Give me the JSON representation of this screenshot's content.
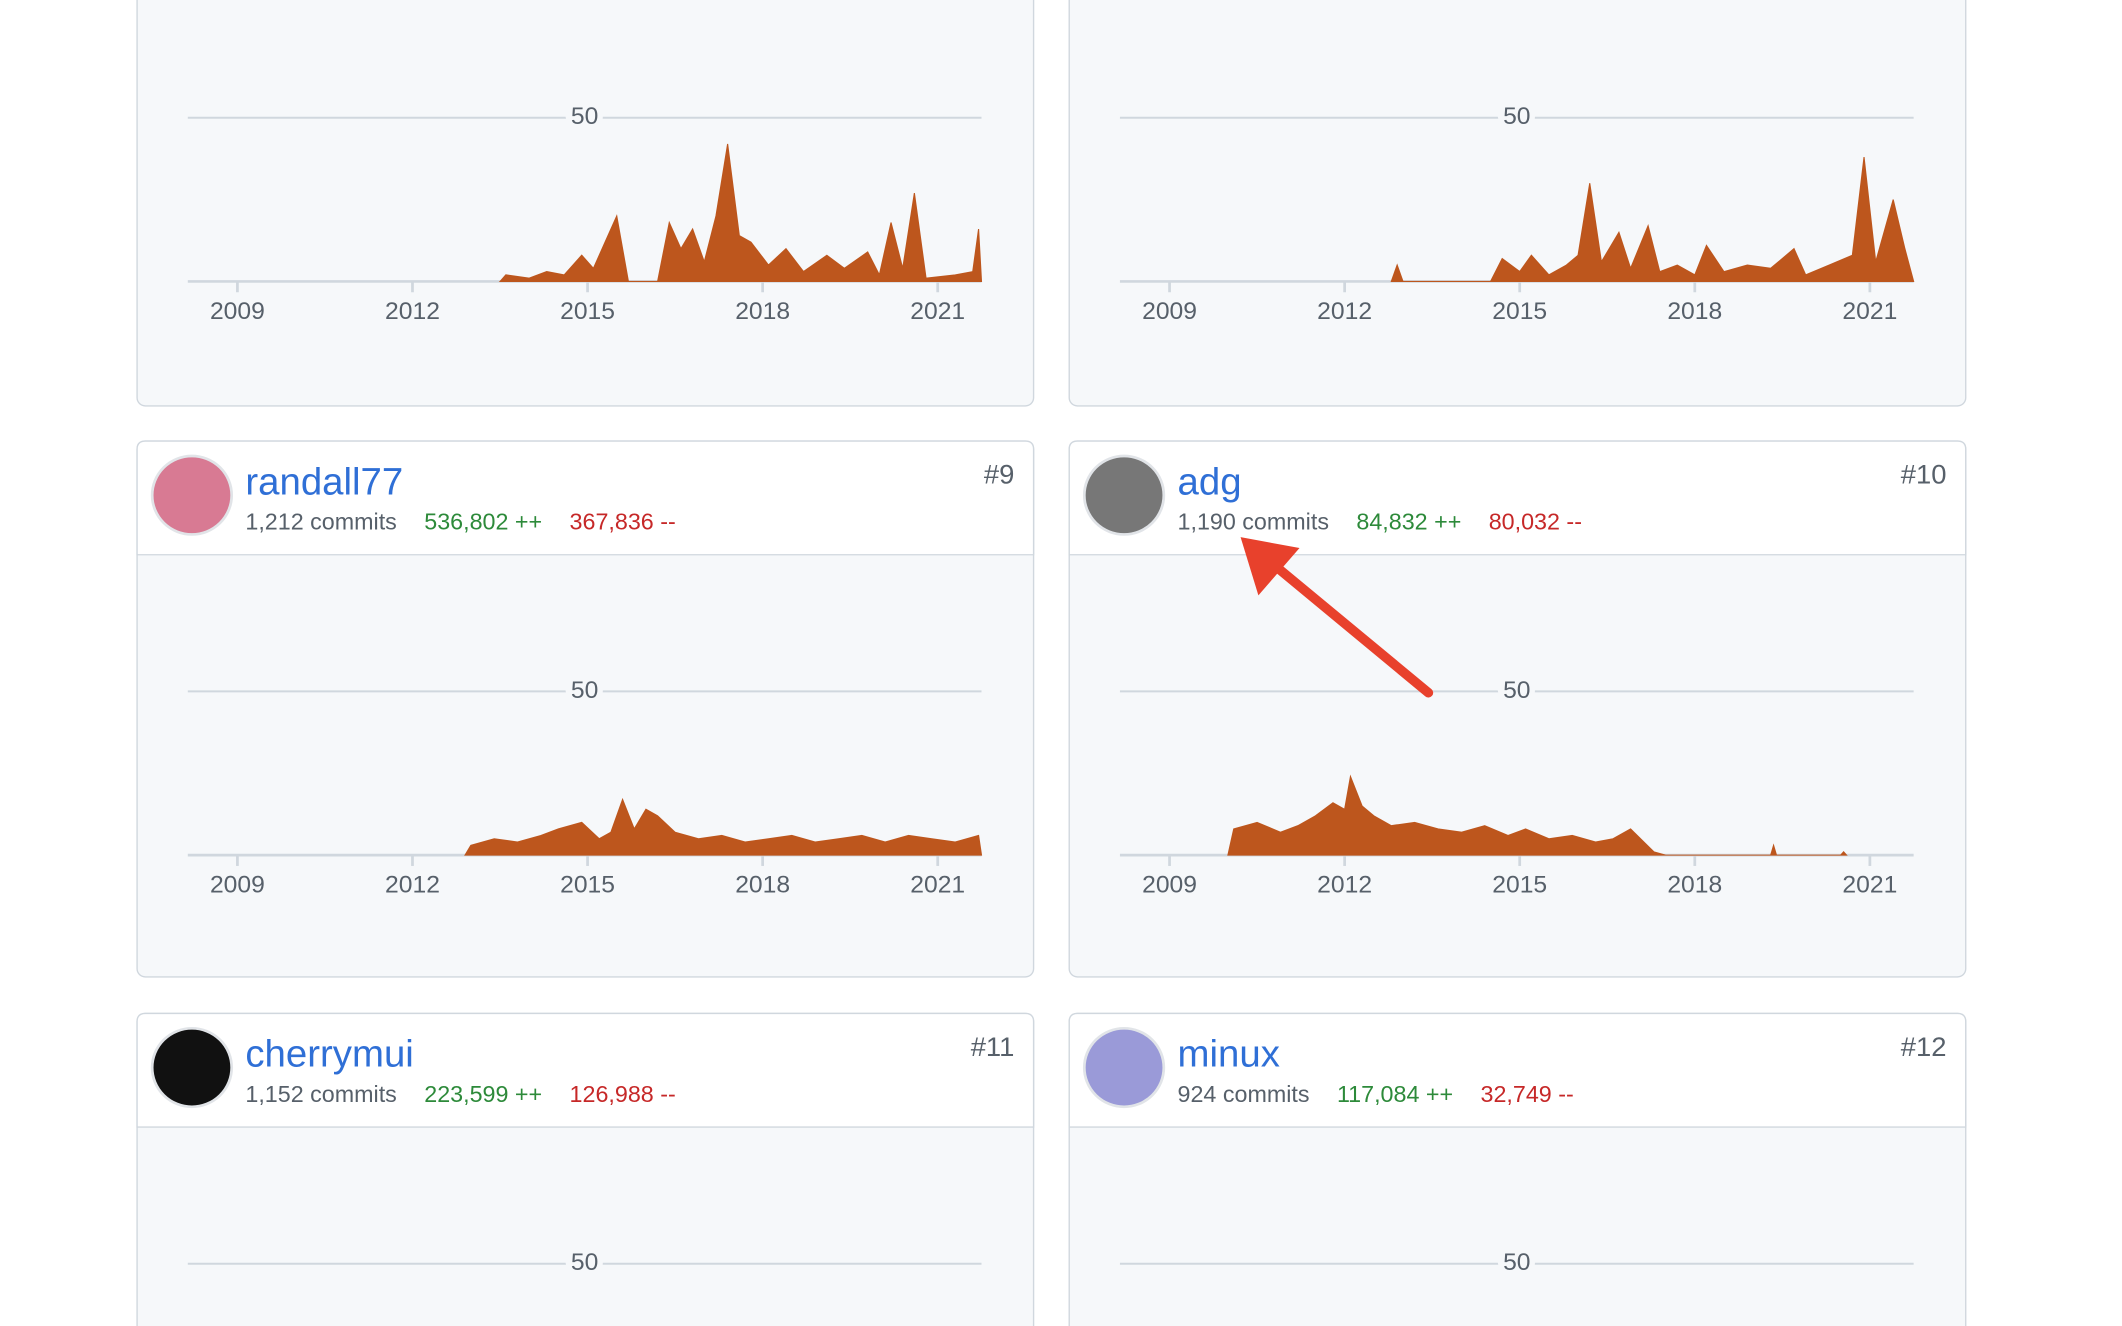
{
  "cards": [
    {
      "chart": {
        "type": "area",
        "color": "#bd561d",
        "xlim": [
          2008.15,
          2021.75
        ],
        "ylim": [
          0,
          50
        ],
        "xticks": [
          2009,
          2012,
          2015,
          2018,
          2021
        ],
        "yticks": [
          50
        ],
        "x": [
          2013.5,
          2013.6,
          2014.0,
          2014.3,
          2014.6,
          2014.9,
          2015.1,
          2015.3,
          2015.5,
          2015.7,
          2016.2,
          2016.4,
          2016.6,
          2016.8,
          2017.0,
          2017.2,
          2017.4,
          2017.6,
          2017.8,
          2018.1,
          2018.4,
          2018.7,
          2019.1,
          2019.4,
          2019.8,
          2020.0,
          2020.2,
          2020.4,
          2020.6,
          2020.8,
          2021.3,
          2021.6,
          2021.7,
          2021.75
        ],
        "values": [
          0,
          2,
          1,
          3,
          2,
          8,
          4,
          12,
          20,
          0,
          0,
          18,
          10,
          16,
          6,
          20,
          42,
          14,
          12,
          5,
          10,
          3,
          8,
          4,
          9,
          2,
          18,
          4,
          27,
          1,
          2,
          3,
          16,
          0
        ]
      }
    },
    {
      "chart": {
        "type": "area",
        "color": "#bd561d",
        "xlim": [
          2008.15,
          2021.75
        ],
        "ylim": [
          0,
          50
        ],
        "xticks": [
          2009,
          2012,
          2015,
          2018,
          2021
        ],
        "yticks": [
          50
        ],
        "x": [
          2012.8,
          2012.9,
          2013.0,
          2014.5,
          2014.7,
          2015.0,
          2015.2,
          2015.5,
          2015.8,
          2016.0,
          2016.2,
          2016.4,
          2016.7,
          2016.9,
          2017.2,
          2017.4,
          2017.7,
          2018.0,
          2018.2,
          2018.5,
          2018.9,
          2019.3,
          2019.7,
          2019.9,
          2020.3,
          2020.7,
          2020.9,
          2021.1,
          2021.4,
          2021.6,
          2021.75
        ],
        "values": [
          0,
          5,
          0,
          0,
          7,
          3,
          8,
          2,
          5,
          8,
          30,
          6,
          15,
          4,
          17,
          3,
          5,
          2,
          11,
          3,
          5,
          4,
          10,
          2,
          5,
          8,
          38,
          6,
          25,
          10,
          0
        ]
      }
    },
    {
      "name": "randall77",
      "commits": "1,212 commits",
      "additions": "536,802 ++",
      "deletions": "367,836 --",
      "rank": "#9",
      "chart": {
        "type": "area",
        "color": "#bd561d",
        "xlim": [
          2008.15,
          2021.75
        ],
        "ylim": [
          0,
          50
        ],
        "xticks": [
          2009,
          2012,
          2015,
          2018,
          2021
        ],
        "yticks": [
          50
        ],
        "x": [
          2012.9,
          2013.0,
          2013.4,
          2013.8,
          2014.2,
          2014.5,
          2014.9,
          2015.2,
          2015.4,
          2015.6,
          2015.8,
          2016.0,
          2016.2,
          2016.5,
          2016.9,
          2017.3,
          2017.7,
          2018.1,
          2018.5,
          2018.9,
          2019.3,
          2019.7,
          2020.1,
          2020.5,
          2020.9,
          2021.3,
          2021.7,
          2021.75
        ],
        "values": [
          0,
          3,
          5,
          4,
          6,
          8,
          10,
          5,
          7,
          17,
          8,
          14,
          12,
          7,
          5,
          6,
          4,
          5,
          6,
          4,
          5,
          6,
          4,
          6,
          5,
          4,
          6,
          0
        ]
      }
    },
    {
      "name": "adg",
      "commits": "1,190 commits",
      "additions": "84,832 ++",
      "deletions": "80,032 --",
      "rank": "#10",
      "chart": {
        "type": "area",
        "color": "#bd561d",
        "xlim": [
          2008.15,
          2021.75
        ],
        "ylim": [
          0,
          50
        ],
        "xticks": [
          2009,
          2012,
          2015,
          2018,
          2021
        ],
        "yticks": [
          50
        ],
        "x": [
          2010.0,
          2010.1,
          2010.5,
          2010.9,
          2011.2,
          2011.5,
          2011.8,
          2012.0,
          2012.1,
          2012.3,
          2012.5,
          2012.8,
          2013.2,
          2013.6,
          2014.0,
          2014.4,
          2014.8,
          2015.1,
          2015.5,
          2015.9,
          2016.3,
          2016.6,
          2016.9,
          2017.3,
          2017.5,
          2019.3,
          2019.35,
          2019.4,
          2020.5,
          2020.55,
          2020.6
        ],
        "values": [
          0,
          8,
          10,
          7,
          9,
          12,
          16,
          14,
          24,
          15,
          12,
          9,
          10,
          8,
          7,
          9,
          6,
          8,
          5,
          6,
          4,
          5,
          8,
          1,
          0,
          0,
          3,
          0,
          0,
          1,
          0
        ]
      }
    },
    {
      "name": "cherrymui",
      "commits": "1,152 commits",
      "additions": "223,599 ++",
      "deletions": "126,988 --",
      "rank": "#11",
      "chart": {
        "type": "area",
        "color": "#bd561d",
        "ylim": [
          0,
          50
        ],
        "yticks": [
          50
        ]
      }
    },
    {
      "name": "minux",
      "commits": "924 commits",
      "additions": "117,084 ++",
      "deletions": "32,749 --",
      "rank": "#12",
      "chart": {
        "type": "area",
        "color": "#bd561d",
        "ylim": [
          0,
          50
        ],
        "yticks": [
          50
        ]
      }
    }
  ]
}
